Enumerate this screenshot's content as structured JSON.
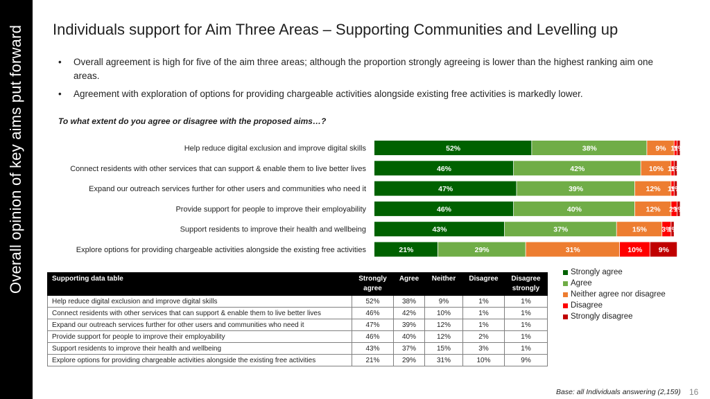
{
  "sidebar": {
    "title": "Overall opinion of key aims put forward"
  },
  "page_title": "Individuals support for Aim Three Areas – Supporting Communities and Levelling up",
  "bullets": [
    "Overall agreement is high for five of the aim three areas; although the proportion strongly agreeing is lower than the highest ranking aim one areas.",
    "Agreement with exploration of options for providing chargeable activities alongside existing free activities is markedly lower."
  ],
  "bullet_char": "•",
  "question": "To what extent do you agree or disagree with the proposed aims…?",
  "chart_data": {
    "type": "bar",
    "orientation": "horizontal",
    "stacked": true,
    "categories": [
      "Help reduce digital exclusion and improve digital skills",
      "Connect residents with other services that can support & enable them to live better lives",
      "Expand our outreach services further for other users and communities who need it",
      "Provide support for people to improve their employability",
      "Support residents to improve their health and wellbeing",
      "Explore options for providing chargeable activities alongside the existing free activities"
    ],
    "series": [
      {
        "name": "Strongly agree",
        "color": "#006100",
        "values": [
          52,
          46,
          47,
          46,
          43,
          21
        ]
      },
      {
        "name": "Agree",
        "color": "#70AD47",
        "values": [
          38,
          42,
          39,
          40,
          37,
          29
        ]
      },
      {
        "name": "Neither agree nor disagree",
        "color": "#ED7D31",
        "values": [
          9,
          10,
          12,
          12,
          15,
          31
        ]
      },
      {
        "name": "Disagree",
        "color": "#FF0000",
        "values": [
          1,
          1,
          1,
          2,
          3,
          10
        ]
      },
      {
        "name": "Strongly disagree",
        "color": "#C00000",
        "values": [
          1,
          1,
          1,
          1,
          1,
          9
        ]
      }
    ],
    "value_suffix": "%",
    "xlim": [
      0,
      100
    ],
    "grid": false,
    "legend_position": "right"
  },
  "table": {
    "headers": [
      "Supporting data table",
      "Strongly agree",
      "Agree",
      "Neither",
      "Disagree",
      "Disagree strongly"
    ],
    "rows": [
      [
        "Help reduce digital exclusion and improve digital skills",
        "52%",
        "38%",
        "9%",
        "1%",
        "1%"
      ],
      [
        "Connect residents with other services that can support & enable them to live better lives",
        "46%",
        "42%",
        "10%",
        "1%",
        "1%"
      ],
      [
        "Expand our outreach services further for other users and communities who need it",
        "47%",
        "39%",
        "12%",
        "1%",
        "1%"
      ],
      [
        "Provide support for people to improve their employability",
        "46%",
        "40%",
        "12%",
        "2%",
        "1%"
      ],
      [
        "Support residents to improve their health and wellbeing",
        "43%",
        "37%",
        "15%",
        "3%",
        "1%"
      ],
      [
        "Explore options for providing chargeable activities alongside the existing free activities",
        "21%",
        "29%",
        "31%",
        "10%",
        "9%"
      ]
    ]
  },
  "base_note": "Base: all Individuals answering (2,159)",
  "page_number": "16"
}
